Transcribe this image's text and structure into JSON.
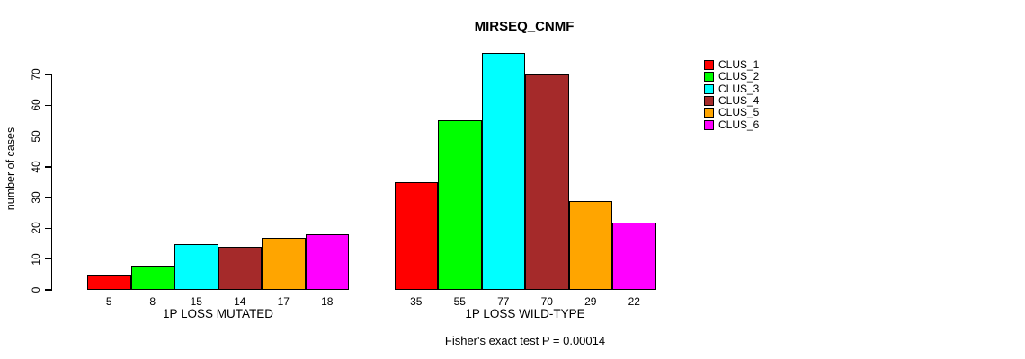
{
  "chart_data": {
    "type": "bar",
    "title": "MIRSEQ_CNMF",
    "ylabel": "number of cases",
    "xlabel": "",
    "ylim": [
      0,
      70
    ],
    "yticks": [
      0,
      10,
      20,
      30,
      40,
      50,
      60,
      70
    ],
    "grid": false,
    "legend_position": "right-top-outside",
    "bar_value_labels_shown": true,
    "categories": [
      "1P LOSS MUTATED",
      "1P LOSS WILD-TYPE"
    ],
    "series": [
      {
        "name": "CLUS_1",
        "color": "#FF0000",
        "values": [
          5,
          35
        ]
      },
      {
        "name": "CLUS_2",
        "color": "#00FF00",
        "values": [
          8,
          55
        ]
      },
      {
        "name": "CLUS_3",
        "color": "#00FFFF",
        "values": [
          15,
          77
        ]
      },
      {
        "name": "CLUS_4",
        "color": "#A52A2A",
        "values": [
          14,
          70
        ]
      },
      {
        "name": "CLUS_5",
        "color": "#FFA500",
        "values": [
          17,
          29
        ]
      },
      {
        "name": "CLUS_6",
        "color": "#FF00FF",
        "values": [
          18,
          22
        ]
      }
    ],
    "annotation": "Fisher's exact test P = 0.00014"
  }
}
